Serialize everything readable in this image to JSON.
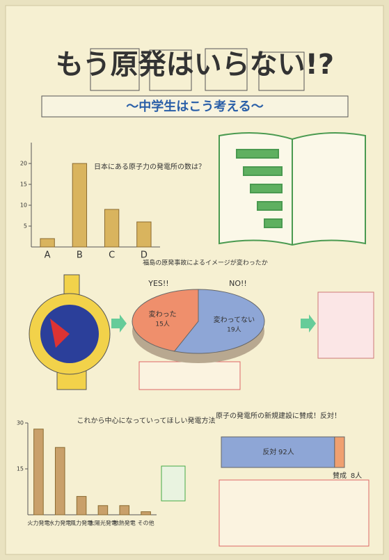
{
  "header": {
    "title": "もう原発はいらない!?",
    "subtitle": "〜中学生はこう考える〜"
  },
  "chart_data": [
    {
      "type": "bar",
      "title": "日本にある原子力の発電所の数は？",
      "categories": [
        "A",
        "B",
        "C",
        "D"
      ],
      "values": [
        2,
        20,
        9,
        6
      ],
      "color": "#d9b45e",
      "ylim": [
        0,
        25
      ],
      "yticks": [
        5,
        10,
        15,
        20
      ]
    },
    {
      "type": "pie",
      "title": "福島の原発事故によるイメージが変わったか",
      "categories": [
        "変わった",
        "変わってない"
      ],
      "tags": [
        "YES!!",
        "NO!!"
      ],
      "values": [
        15,
        19
      ],
      "value_labels": [
        "15人",
        "19人"
      ],
      "colors": [
        "#ef8f6c",
        "#8ea6d6"
      ]
    },
    {
      "type": "bar",
      "title": "これから中心になっていってほしい発電方法",
      "categories": [
        "火力発電",
        "水力発電",
        "風力発電",
        "太陽光発電",
        "地熱発電",
        "その他"
      ],
      "values": [
        28,
        22,
        6,
        3,
        3,
        1
      ],
      "color": "#c9a06a",
      "ylim": [
        0,
        30
      ],
      "yticks": [
        15,
        30
      ]
    },
    {
      "type": "stacked-bar",
      "title": "原子の発電所の新規建設に賛成！反対！",
      "categories": [
        "反対",
        "賛成"
      ],
      "values": [
        92,
        8
      ],
      "value_labels": [
        "92人",
        "8人"
      ],
      "colors": [
        "#8ea6d6",
        "#f0a070"
      ],
      "xlim": [
        0,
        100
      ]
    }
  ]
}
